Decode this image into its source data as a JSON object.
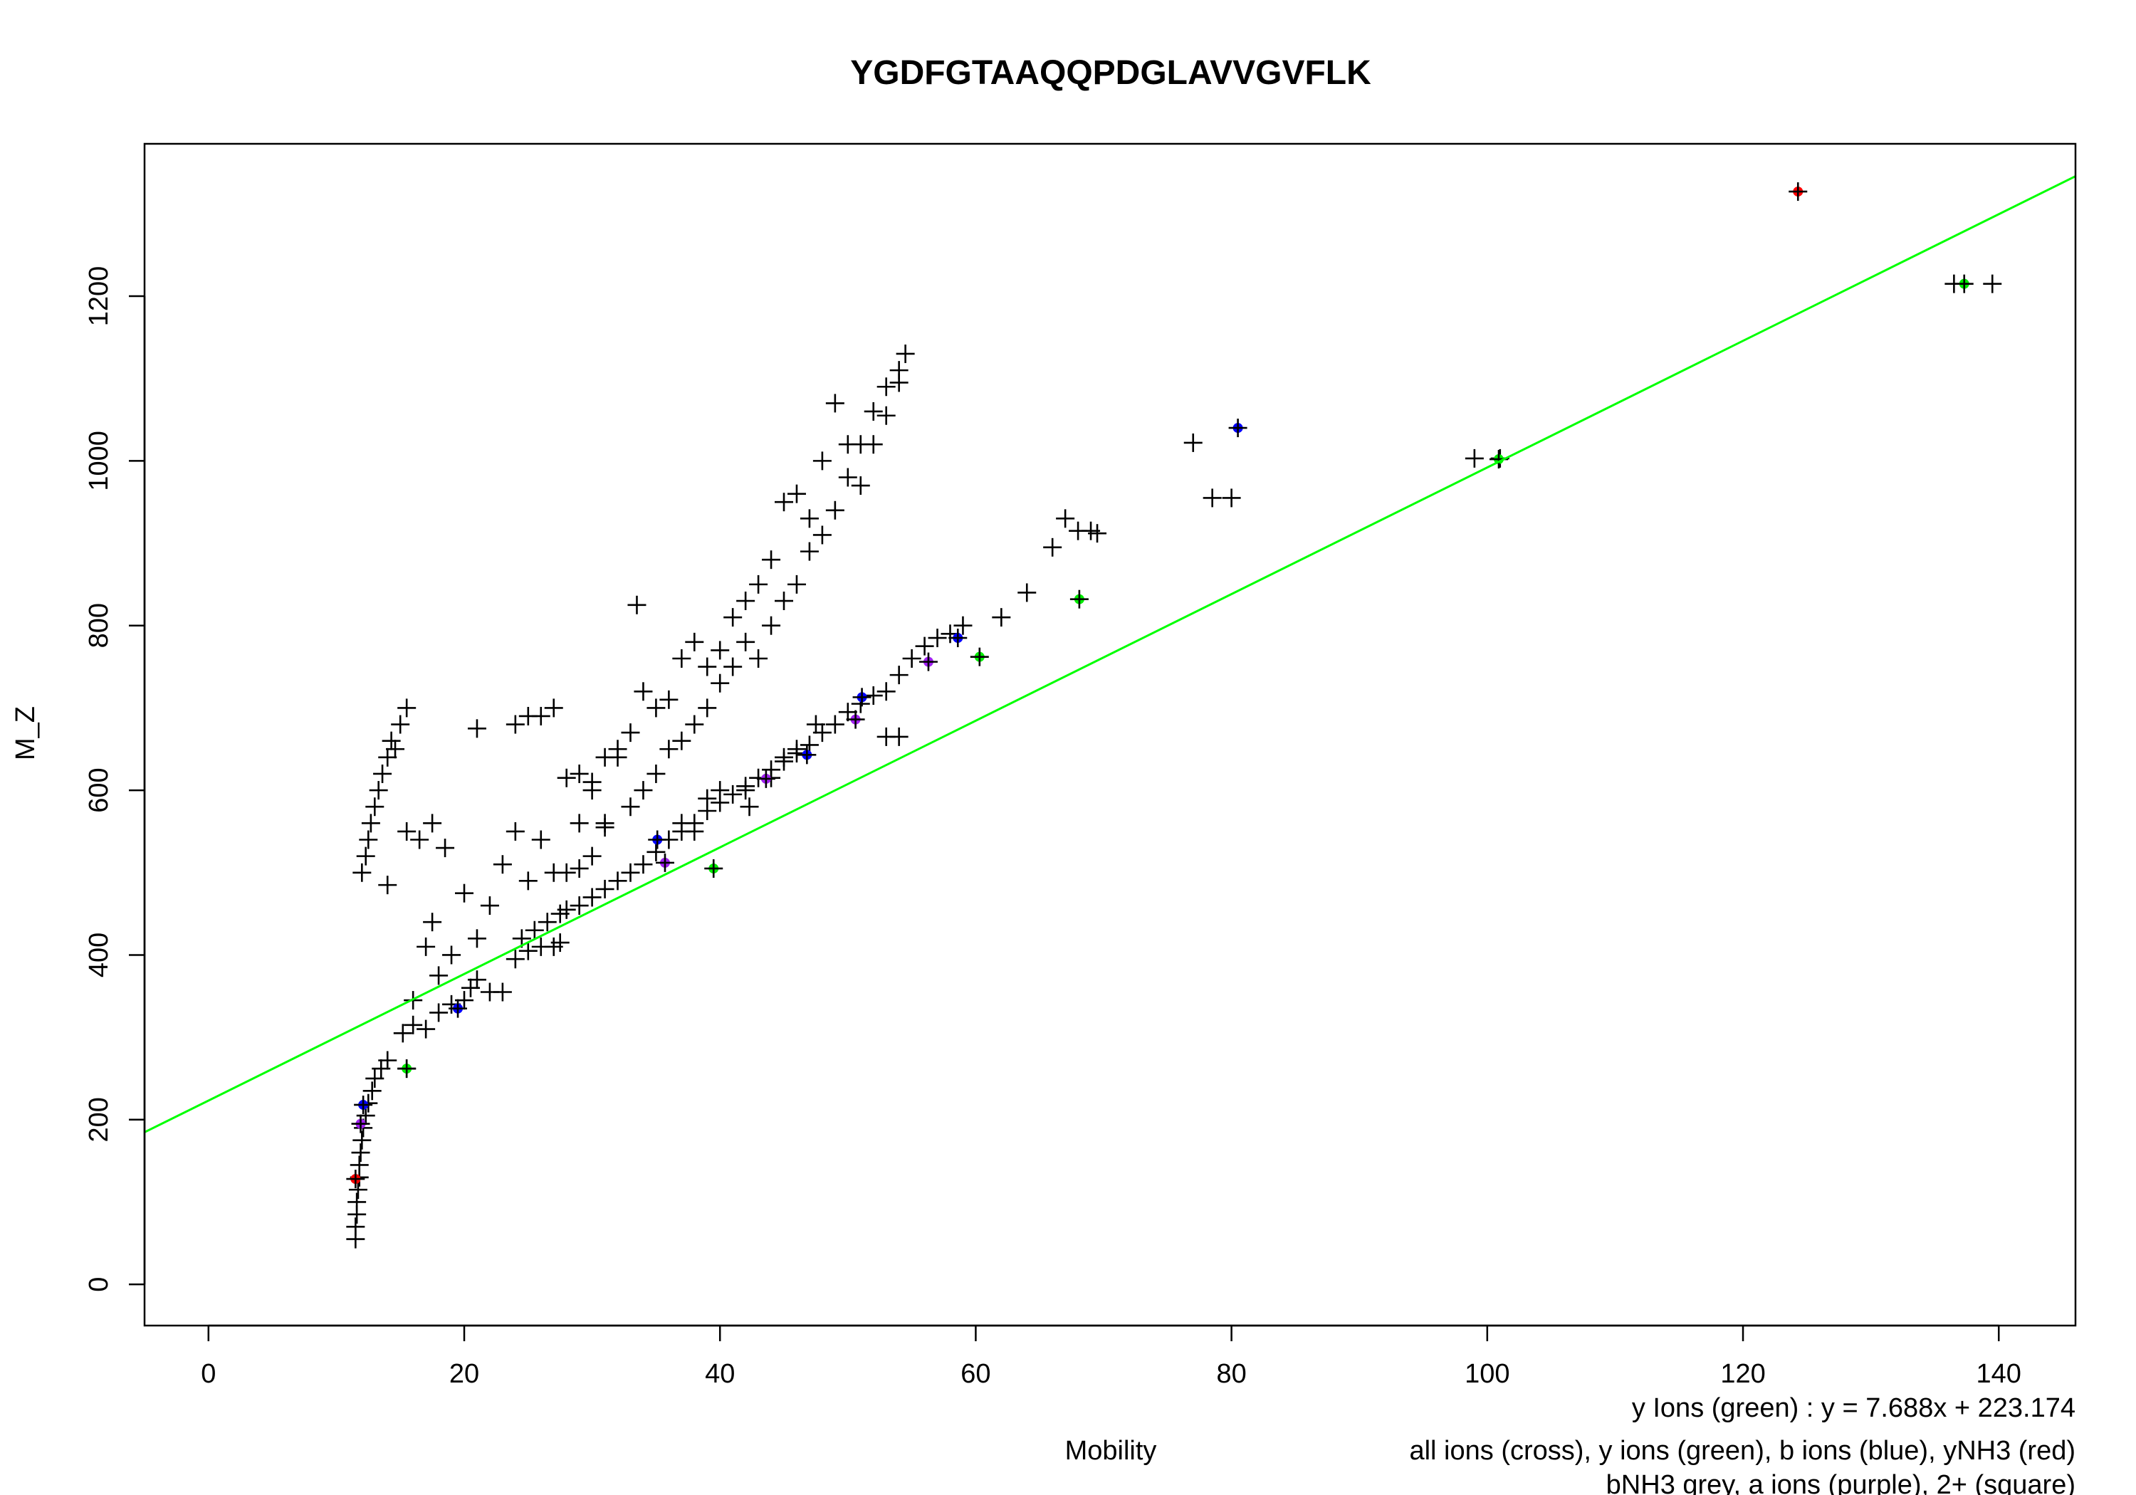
{
  "chart_data": {
    "type": "scatter",
    "title": "YGDFGTAAQQPDGLAVVGVFLK",
    "xlabel": "Mobility",
    "ylabel": "M_Z",
    "xlim": [
      -5,
      146
    ],
    "ylim": [
      -50,
      1385
    ],
    "xticks": [
      0,
      20,
      40,
      60,
      80,
      100,
      120,
      140
    ],
    "yticks": [
      0,
      200,
      400,
      600,
      800,
      1000,
      1200
    ],
    "grid": false,
    "legend_lines": [
      "y Ions (green) : y = 7.688x + 223.174",
      "all ions (cross), y ions (green), b ions (blue), yNH3 (red)",
      "bNH3 grey, a ions (purple), 2+ (square)"
    ],
    "fit_line": {
      "slope": 7.688,
      "intercept": 223.174,
      "color": "#00ff00"
    },
    "colors": {
      "all": "#000000",
      "y": "#00ee00",
      "b": "#0000ff",
      "yNH3": "#ff0000",
      "a": "#a020f0"
    },
    "series": [
      {
        "name": "all ions (cross)",
        "color": "#000000",
        "points": [
          [
            11.5,
            55
          ],
          [
            11.5,
            70
          ],
          [
            11.6,
            85
          ],
          [
            11.6,
            100
          ],
          [
            11.7,
            115
          ],
          [
            11.8,
            130
          ],
          [
            11.8,
            145
          ],
          [
            11.9,
            160
          ],
          [
            12,
            175
          ],
          [
            12.1,
            190
          ],
          [
            12.3,
            205
          ],
          [
            12.5,
            220
          ],
          [
            12.8,
            235
          ],
          [
            13,
            250
          ],
          [
            13.5,
            262
          ],
          [
            14,
            272
          ],
          [
            15.5,
            262
          ],
          [
            15.2,
            305
          ],
          [
            16,
            315
          ],
          [
            17,
            310
          ],
          [
            18,
            330
          ],
          [
            19,
            340
          ],
          [
            20,
            345
          ],
          [
            20.5,
            360
          ],
          [
            21,
            370
          ],
          [
            22,
            355
          ],
          [
            23,
            355
          ],
          [
            24,
            395
          ],
          [
            25,
            405
          ],
          [
            26,
            410
          ],
          [
            27,
            410
          ],
          [
            27.5,
            415
          ],
          [
            24.5,
            420
          ],
          [
            25.5,
            430
          ],
          [
            26.5,
            440
          ],
          [
            27.5,
            450
          ],
          [
            28,
            455
          ],
          [
            29,
            460
          ],
          [
            30,
            470
          ],
          [
            31,
            480
          ],
          [
            32,
            490
          ],
          [
            33,
            500
          ],
          [
            34,
            510
          ],
          [
            35,
            525
          ],
          [
            36,
            540
          ],
          [
            37,
            550
          ],
          [
            38,
            560
          ],
          [
            39,
            575
          ],
          [
            40,
            585
          ],
          [
            41,
            595
          ],
          [
            42,
            605
          ],
          [
            43,
            615
          ],
          [
            44,
            625
          ],
          [
            45,
            635
          ],
          [
            46,
            645
          ],
          [
            47,
            655
          ],
          [
            48,
            670
          ],
          [
            49,
            680
          ],
          [
            50,
            695
          ],
          [
            51,
            705
          ],
          [
            52,
            715
          ],
          [
            53,
            720
          ],
          [
            54,
            740
          ],
          [
            55,
            760
          ],
          [
            56,
            775
          ],
          [
            57,
            785
          ],
          [
            58,
            790
          ],
          [
            59,
            800
          ],
          [
            62,
            810
          ],
          [
            64,
            840
          ],
          [
            66,
            895
          ],
          [
            67,
            930
          ],
          [
            68,
            915
          ],
          [
            69,
            915
          ],
          [
            69.5,
            912
          ],
          [
            16,
            345
          ],
          [
            17,
            410
          ],
          [
            17.5,
            440
          ],
          [
            18,
            375
          ],
          [
            19,
            400
          ],
          [
            20,
            475
          ],
          [
            21,
            420
          ],
          [
            22,
            460
          ],
          [
            23,
            510
          ],
          [
            24,
            550
          ],
          [
            25,
            490
          ],
          [
            26,
            540
          ],
          [
            27,
            500
          ],
          [
            28,
            500
          ],
          [
            29,
            505
          ],
          [
            30,
            600
          ],
          [
            31,
            560
          ],
          [
            32,
            640
          ],
          [
            33,
            580
          ],
          [
            34,
            600
          ],
          [
            35,
            620
          ],
          [
            36,
            650
          ],
          [
            37,
            660
          ],
          [
            38,
            680
          ],
          [
            39,
            700
          ],
          [
            40,
            730
          ],
          [
            41,
            750
          ],
          [
            42,
            780
          ],
          [
            43,
            760
          ],
          [
            44,
            800
          ],
          [
            45,
            830
          ],
          [
            46,
            850
          ],
          [
            47,
            890
          ],
          [
            48,
            910
          ],
          [
            49,
            940
          ],
          [
            50,
            980
          ],
          [
            51,
            1020
          ],
          [
            52,
            1060
          ],
          [
            53,
            1090
          ],
          [
            54,
            1110
          ],
          [
            54.5,
            1130
          ],
          [
            12,
            500
          ],
          [
            12.3,
            520
          ],
          [
            12.5,
            540
          ],
          [
            12.7,
            560
          ],
          [
            13,
            580
          ],
          [
            13.3,
            600
          ],
          [
            13.6,
            620
          ],
          [
            14,
            640
          ],
          [
            14.3,
            660
          ],
          [
            14.6,
            650
          ],
          [
            15,
            680
          ],
          [
            15.5,
            700
          ],
          [
            14,
            485
          ],
          [
            15.5,
            550
          ],
          [
            16.5,
            540
          ],
          [
            17.5,
            560
          ],
          [
            18.5,
            530
          ],
          [
            21,
            675
          ],
          [
            24,
            680
          ],
          [
            25,
            690
          ],
          [
            26,
            690
          ],
          [
            27,
            700
          ],
          [
            28,
            615
          ],
          [
            29,
            620
          ],
          [
            30,
            610
          ],
          [
            31,
            640
          ],
          [
            32,
            650
          ],
          [
            33,
            670
          ],
          [
            34,
            720
          ],
          [
            35,
            700
          ],
          [
            36,
            710
          ],
          [
            37,
            760
          ],
          [
            38,
            780
          ],
          [
            39,
            750
          ],
          [
            40,
            770
          ],
          [
            41,
            810
          ],
          [
            42,
            830
          ],
          [
            43,
            850
          ],
          [
            44,
            880
          ],
          [
            45,
            950
          ],
          [
            46,
            960
          ],
          [
            47,
            930
          ],
          [
            48,
            1000
          ],
          [
            49,
            1070
          ],
          [
            50,
            1020
          ],
          [
            51,
            970
          ],
          [
            52,
            1020
          ],
          [
            53,
            1055
          ],
          [
            54,
            1095
          ],
          [
            31,
            555
          ],
          [
            33.5,
            825
          ],
          [
            29,
            560
          ],
          [
            30,
            520
          ],
          [
            37,
            560
          ],
          [
            38,
            550
          ],
          [
            39,
            590
          ],
          [
            40,
            600
          ],
          [
            42,
            600
          ],
          [
            42.3,
            580
          ],
          [
            44,
            615
          ],
          [
            45,
            640
          ],
          [
            46,
            650
          ],
          [
            53,
            665
          ],
          [
            54,
            665
          ],
          [
            47.5,
            680
          ],
          [
            77,
            1022
          ],
          [
            78.5,
            955
          ],
          [
            80,
            955
          ],
          [
            99,
            1003
          ],
          [
            101,
            1003
          ],
          [
            136.5,
            1215
          ],
          [
            139.5,
            1215
          ]
        ]
      },
      {
        "name": "y ions (green)",
        "color": "#00ee00",
        "points": [
          [
            15.5,
            262
          ],
          [
            39.5,
            505
          ],
          [
            60.3,
            762
          ],
          [
            68.1,
            832
          ],
          [
            100.9,
            1002
          ],
          [
            137.3,
            1215
          ]
        ]
      },
      {
        "name": "b ions (blue)",
        "color": "#0000ff",
        "points": [
          [
            12.1,
            218
          ],
          [
            19.5,
            335
          ],
          [
            35.1,
            540
          ],
          [
            46.8,
            643
          ],
          [
            51.1,
            713
          ],
          [
            58.6,
            785
          ],
          [
            80.5,
            1040
          ]
        ]
      },
      {
        "name": "yNH3 (red)",
        "color": "#ff0000",
        "points": [
          [
            11.5,
            128
          ],
          [
            124.3,
            1327
          ]
        ]
      },
      {
        "name": "a ions (purple)",
        "color": "#a020f0",
        "points": [
          [
            11.9,
            195
          ],
          [
            35.7,
            512
          ],
          [
            43.6,
            614
          ],
          [
            50.6,
            686
          ],
          [
            56.3,
            756
          ]
        ]
      }
    ]
  }
}
